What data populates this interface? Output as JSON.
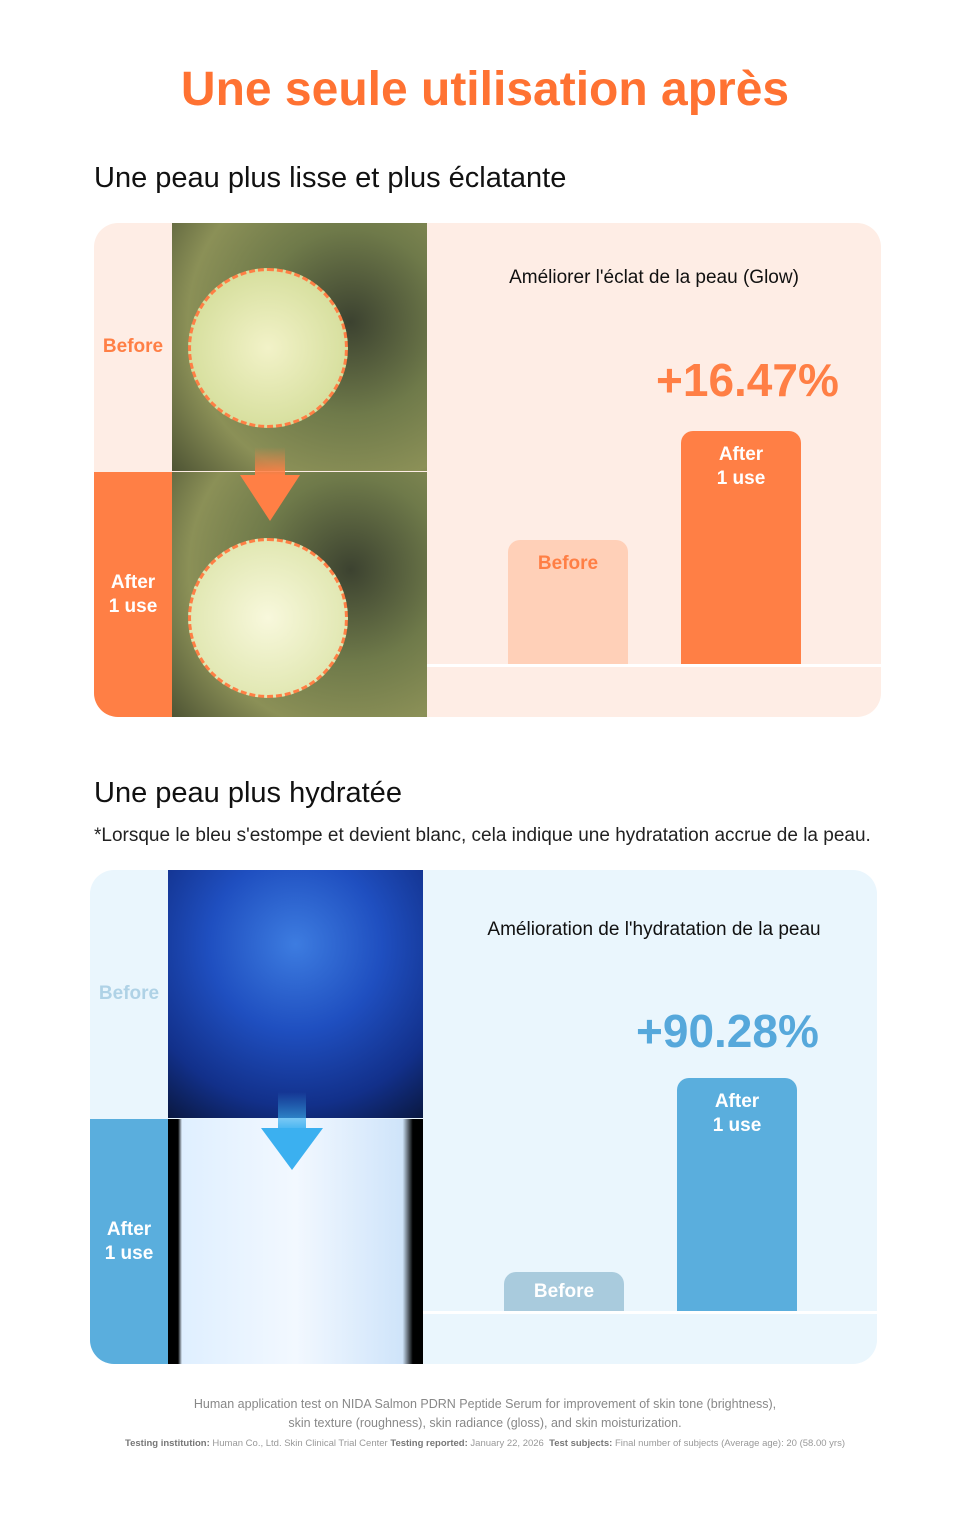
{
  "title": "Une seule utilisation après",
  "glow": {
    "heading": "Une peau plus lisse et plus éclatante",
    "before_label": "Before",
    "after_label_1": "After",
    "after_label_2": "1 use",
    "chart_title": "Améliorer l'éclat de la peau (Glow)",
    "improvement": "+16.47%",
    "bar_before": "Before",
    "bar_after_1": "After",
    "bar_after_2": "1 use",
    "colors": {
      "accent": "#FF7F45",
      "background": "#FEEDE5",
      "before_bar": "#FFD0B8"
    }
  },
  "hydration": {
    "heading": "Une peau plus hydratée",
    "note": "*Lorsque le bleu s'estompe et devient blanc, cela indique une hydratation accrue de la peau.",
    "before_label": "Before",
    "after_label_1": "After",
    "after_label_2": "1 use",
    "chart_title": "Amélioration de l'hydratation de la peau",
    "improvement": "+90.28%",
    "bar_before": "Before",
    "bar_after_1": "After",
    "bar_after_2": "1 use",
    "colors": {
      "accent": "#5AAEDD",
      "background": "#EAF6FD",
      "before_bar": "#A9CBDD"
    }
  },
  "footer": {
    "line1": "Human application test on NIDA Salmon PDRN Peptide Serum for improvement of skin tone (brightness),",
    "line2": "skin texture (roughness), skin radiance (gloss), and skin moisturization.",
    "institution_label": "Testing institution:",
    "institution": "Human Co., Ltd. Skin Clinical Trial Center",
    "reported_label": "Testing reported:",
    "reported": "January 22, 2026",
    "subjects_label": "Test subjects:",
    "subjects": "Final number of subjects (Average age): 20 (58.00 yrs)"
  }
}
